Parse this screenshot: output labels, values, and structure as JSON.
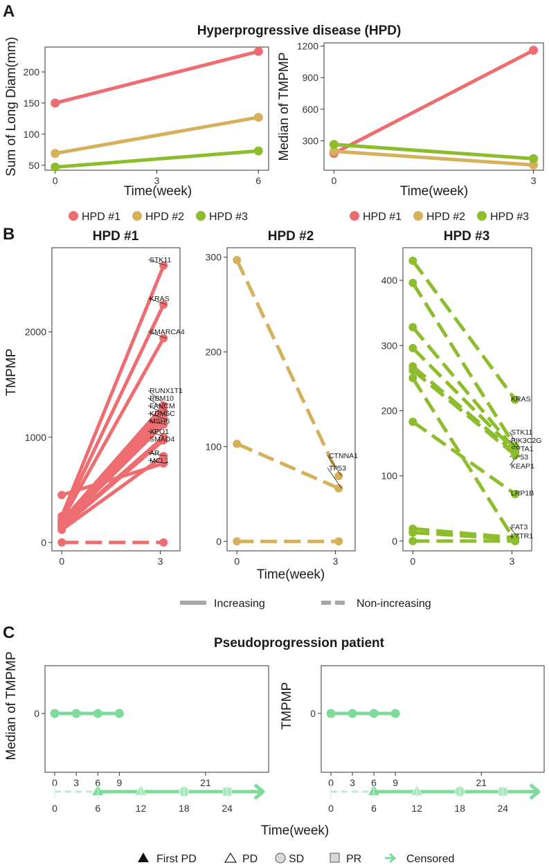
{
  "colors": {
    "hpd1": "#EE6D71",
    "hpd2": "#D5B15C",
    "hpd3": "#8DBD2C",
    "pseudo": "#7EDB9B",
    "legend_grey": "#A6A6A6"
  },
  "panels": {
    "A": {
      "letter": "A",
      "title": "Hyperprogressive disease (HPD)",
      "left": {
        "ylabel": "Sum of Long Diam(mm)",
        "xlabel": "Time(week)",
        "xticks": [
          0,
          3,
          6
        ],
        "yticks": [
          50,
          100,
          150,
          200
        ]
      },
      "right": {
        "ylabel": "Median of TMPMP",
        "xlabel": "Time(week)",
        "xticks": [
          0,
          3
        ],
        "yticks": [
          300,
          600,
          900,
          1200
        ]
      },
      "legend": [
        "HPD #1",
        "HPD #2",
        "HPD #3"
      ]
    },
    "B": {
      "letter": "B",
      "xlabel": "Time(week)",
      "ylabel": "TMPMP",
      "facets": [
        "HPD #1",
        "HPD #2",
        "HPD #3"
      ],
      "legend": [
        "Increasing",
        "Non-increasing"
      ]
    },
    "C": {
      "letter": "C",
      "title": "Pseudoprogression patient",
      "left_ylabel": "Median of TMPMP",
      "right_ylabel": "TMPMP",
      "xlabel": "Time(week)",
      "upper_xticks": [
        0,
        3,
        6,
        9,
        21
      ],
      "lower_xticks": [
        0,
        6,
        12,
        18,
        24
      ],
      "ytick": "0",
      "legend": [
        "First PD",
        "PD",
        "SD",
        "PR",
        "Censored"
      ]
    }
  },
  "chart_data": [
    {
      "type": "line",
      "title": "Hyperprogressive disease (HPD)",
      "xlabel": "Time(week)",
      "ylabel": "Sum of Long Diam(mm)",
      "xlim": [
        -0.3,
        6.3
      ],
      "ylim": [
        42,
        240
      ],
      "x": [
        0,
        6
      ],
      "series": [
        {
          "name": "HPD #1",
          "color": "#EE6D71",
          "values": [
            150,
            233
          ]
        },
        {
          "name": "HPD #2",
          "color": "#D5B15C",
          "values": [
            69,
            127
          ]
        },
        {
          "name": "HPD #3",
          "color": "#8DBD2C",
          "values": [
            47,
            73
          ]
        }
      ]
    },
    {
      "type": "line",
      "title": "Hyperprogressive disease (HPD)",
      "xlabel": "Time(week)",
      "ylabel": "Median of TMPMP",
      "xlim": [
        -0.15,
        3.15
      ],
      "ylim": [
        20,
        1230
      ],
      "x": [
        0,
        3
      ],
      "series": [
        {
          "name": "HPD #1",
          "color": "#EE6D71",
          "values": [
            180,
            1160
          ]
        },
        {
          "name": "HPD #2",
          "color": "#D5B15C",
          "values": [
            200,
            70
          ]
        },
        {
          "name": "HPD #3",
          "color": "#8DBD2C",
          "values": [
            265,
            130
          ]
        }
      ]
    },
    {
      "type": "line",
      "title": "HPD #1",
      "xlabel": "Time(week)",
      "ylabel": "TMPMP",
      "xlim": [
        -0.3,
        3.6
      ],
      "ylim": [
        -80,
        2800
      ],
      "yticks": [
        0,
        1000,
        2000
      ],
      "xticks": [
        0,
        3
      ],
      "x": [
        0,
        3.1
      ],
      "series": [
        {
          "name": "STK11",
          "values": [
            250,
            2630
          ],
          "trend": "Increasing"
        },
        {
          "name": "KRAS",
          "values": [
            230,
            2260
          ],
          "trend": "Increasing"
        },
        {
          "name": "SMARCA4",
          "values": [
            210,
            1940
          ],
          "trend": "Increasing"
        },
        {
          "name": "RUNX1T1",
          "values": [
            200,
            1300
          ],
          "trend": "Increasing"
        },
        {
          "name": "RBM10",
          "values": [
            190,
            1250
          ],
          "trend": "Increasing"
        },
        {
          "name": "FANCM",
          "values": [
            180,
            1210
          ],
          "trend": "Increasing"
        },
        {
          "name": "KDM5C",
          "values": [
            170,
            1170
          ],
          "trend": "Increasing"
        },
        {
          "name": "MSH6",
          "values": [
            160,
            1120
          ],
          "trend": "Increasing"
        },
        {
          "name": "XPO1",
          "values": [
            150,
            1000
          ],
          "trend": "Increasing"
        },
        {
          "name": "SMAD4",
          "values": [
            140,
            970
          ],
          "trend": "Increasing"
        },
        {
          "name": "AR",
          "values": [
            120,
            820
          ],
          "trend": "Increasing"
        },
        {
          "name": "MCL1",
          "values": [
            450,
            750
          ],
          "trend": "Increasing"
        },
        {
          "name": "(zero)",
          "values": [
            0,
            0
          ],
          "trend": "Non-increasing"
        }
      ]
    },
    {
      "type": "line",
      "title": "HPD #2",
      "xlabel": "Time(week)",
      "xlim": [
        -0.3,
        3.6
      ],
      "ylim": [
        -10,
        310
      ],
      "yticks": [
        0,
        100,
        200,
        300
      ],
      "xticks": [
        0,
        3
      ],
      "x": [
        0,
        3.1
      ],
      "series": [
        {
          "name": "CTNNA1",
          "values": [
            297,
            69
          ],
          "trend": "Non-increasing"
        },
        {
          "name": "TP53",
          "values": [
            103,
            56
          ],
          "trend": "Non-increasing"
        },
        {
          "name": "(zero)",
          "values": [
            0,
            0
          ],
          "trend": "Non-increasing"
        }
      ]
    },
    {
      "type": "line",
      "title": "HPD #3",
      "xlabel": "Time(week)",
      "xlim": [
        -0.3,
        3.6
      ],
      "ylim": [
        -15,
        450
      ],
      "yticks": [
        0,
        100,
        200,
        300,
        400
      ],
      "xticks": [
        0,
        3
      ],
      "x": [
        0,
        3.1
      ],
      "series": [
        {
          "name": "KRAS",
          "values": [
            430,
            217
          ],
          "trend": "Non-increasing"
        },
        {
          "name": "STK11",
          "values": [
            396,
            145
          ],
          "trend": "Non-increasing"
        },
        {
          "name": "PIK3C2G",
          "values": [
            328,
            140
          ],
          "trend": "Non-increasing"
        },
        {
          "name": "SPTA1",
          "values": [
            296,
            138
          ],
          "trend": "Non-increasing"
        },
        {
          "name": "TP53",
          "values": [
            268,
            135
          ],
          "trend": "Non-increasing"
        },
        {
          "name": "KEAP1",
          "values": [
            262,
            132
          ],
          "trend": "Non-increasing"
        },
        {
          "name": "LRP1B",
          "values": [
            183,
            72
          ],
          "trend": "Non-increasing"
        },
        {
          "name": "(to zero)",
          "values": [
            250,
            0
          ],
          "trend": "Non-increasing"
        },
        {
          "name": "FAT3",
          "values": [
            19,
            5
          ],
          "trend": "Non-increasing"
        },
        {
          "name": "LZTR1",
          "values": [
            13,
            3
          ],
          "trend": "Non-increasing"
        },
        {
          "name": "(zero)",
          "values": [
            0,
            0
          ],
          "trend": "Non-increasing"
        }
      ]
    },
    {
      "type": "line",
      "title": "Pseudoprogression patient",
      "ylabel": "Median of TMPMP",
      "xlabel": "Time(week)",
      "x": [
        0,
        3,
        6,
        9
      ],
      "values": [
        0,
        0,
        0,
        0
      ],
      "timeline": {
        "dashed_until": 6,
        "events": [
          {
            "week": 6,
            "status": "First PD"
          },
          {
            "week": 12,
            "status": "PD"
          },
          {
            "week": 18,
            "status": "SD"
          },
          {
            "week": 24,
            "status": "PR"
          },
          {
            "week": 29,
            "status": "Censored"
          }
        ]
      }
    },
    {
      "type": "line",
      "title": "Pseudoprogression patient",
      "ylabel": "TMPMP",
      "xlabel": "Time(week)",
      "x": [
        0,
        3,
        6,
        9
      ],
      "values": [
        0,
        0,
        0,
        0
      ],
      "timeline": {
        "dashed_until": 6,
        "events": [
          {
            "week": 6,
            "status": "First PD"
          },
          {
            "week": 12,
            "status": "PD"
          },
          {
            "week": 18,
            "status": "SD"
          },
          {
            "week": 24,
            "status": "PR"
          },
          {
            "week": 29,
            "status": "Censored"
          }
        ]
      }
    }
  ]
}
